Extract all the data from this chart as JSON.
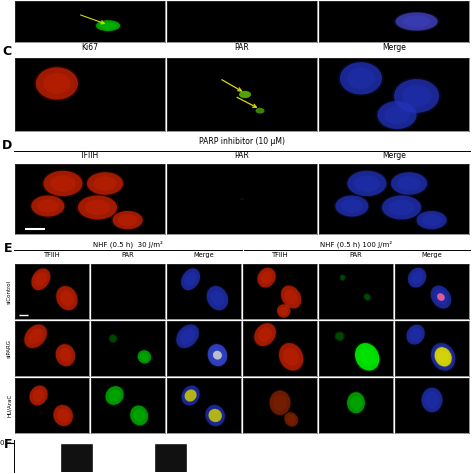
{
  "fig_bg": "#ffffff",
  "panel_C_label": "C",
  "panel_D_label": "D",
  "panel_E_label": "E",
  "panel_F_label": "F",
  "C_col_labels": [
    "Ki67",
    "PAR",
    "Merge"
  ],
  "D_title": "PARP inhibitor (10 μM)",
  "D_col_labels": [
    "TFIIH",
    "PAR",
    "Merge"
  ],
  "E_left_title": "NHF (0.5 h)  30 J/m²",
  "E_right_title": "NHF (0.5 h) 100 J/m²",
  "E_col_labels": [
    "TFIIH",
    "PAR",
    "Merge",
    "TFIIH",
    "PAR",
    "Merge"
  ],
  "E_row_labels": [
    "siControl",
    "siPARG",
    "HU/AraC"
  ]
}
